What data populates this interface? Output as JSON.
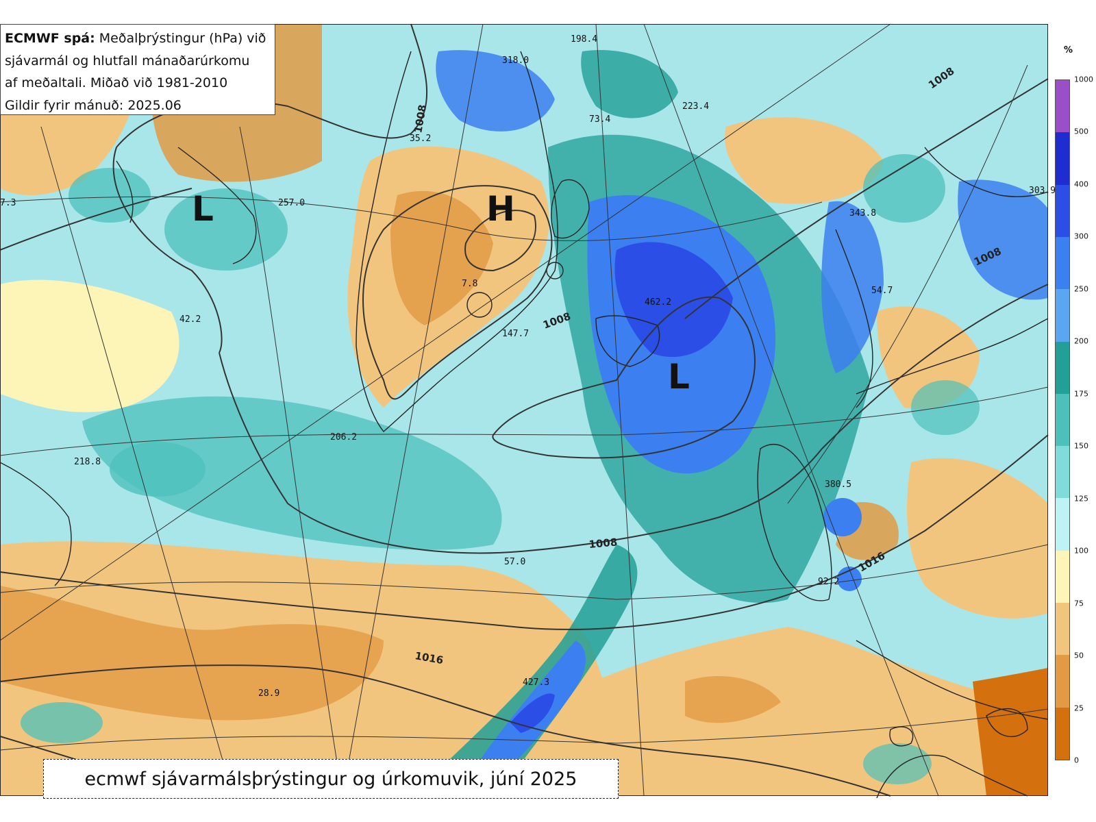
{
  "info_box": {
    "title_bold": "ECMWF spá:",
    "title_rest": "Meðalþrýstingur (hPa) við",
    "line2": "sjávarmál og hlutfall mánaðarúrkomu",
    "line3": "af meðaltali. Miðað við 1981-2010",
    "line4": "Gildir fyrir mánuð: 2025.06"
  },
  "caption": "ecmwf sjávarmálsþrýstingur og úrkomuvik, júní 2025",
  "colorbar": {
    "unit": "%",
    "ticks": [
      "0",
      "25",
      "50",
      "75",
      "100",
      "125",
      "150",
      "175",
      "200",
      "250",
      "300",
      "400",
      "500",
      "1000"
    ],
    "colors": [
      "#d4700e",
      "#e29a45",
      "#f2c57e",
      "#fdf4b8",
      "#bff2f4",
      "#80dcd9",
      "#4ec0bb",
      "#229f96",
      "#5aa6f0",
      "#3c7ff0",
      "#2b4fe6",
      "#1f2cd0",
      "#9a4fc8"
    ]
  },
  "pressure_centers": [
    {
      "type": "low",
      "label": "L"
    },
    {
      "type": "high",
      "label": "H"
    },
    {
      "type": "low",
      "label": "L"
    }
  ],
  "isobar_labels": [
    "1008",
    "1008",
    "1008",
    "1008",
    "1008",
    "1016",
    "1016"
  ],
  "precip_values": [
    "198.4",
    "318.0",
    "223.4",
    "73.4",
    "35.2",
    "257.0",
    "7.3",
    "343.8",
    "303.9",
    "7.8",
    "462.2",
    "54.7",
    "42.2",
    "147.7",
    "206.2",
    "218.8",
    "380.5",
    "57.0",
    "92.2",
    "427.3",
    "28.9"
  ],
  "map_colors": {
    "low": "#d4700e",
    "below": "#f2c57e",
    "normal": "#a8e6ea",
    "above": "#2f9f98",
    "high": "#3c7ff0",
    "very_high": "#2b4fe6"
  }
}
